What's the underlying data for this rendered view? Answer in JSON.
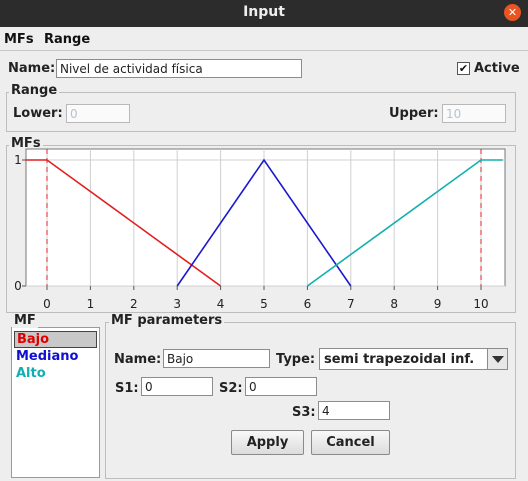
{
  "window": {
    "title": "Input",
    "close_glyph": "✕"
  },
  "menu": [
    "MFs",
    "Range"
  ],
  "name": {
    "label": "Name:",
    "value": "Nivel de actividad física"
  },
  "active": {
    "label": "Active",
    "checked": true,
    "check_glyph": "✔"
  },
  "range": {
    "title": "Range",
    "lower_label": "Lower:",
    "lower_value": "0",
    "upper_label": "Upper:",
    "upper_value": "10"
  },
  "mfs_title": "MFs",
  "chart_data": {
    "type": "line",
    "xlim": [
      0,
      10
    ],
    "ylim": [
      0,
      1
    ],
    "x_ticks": [
      "0",
      "1",
      "2",
      "3",
      "4",
      "5",
      "6",
      "7",
      "8",
      "9",
      "10"
    ],
    "y_ticks": [
      "0",
      "1"
    ],
    "grid": true,
    "series": [
      {
        "name": "Bajo",
        "color": "#e02020",
        "points": [
          [
            -0.5,
            1
          ],
          [
            0,
            1
          ],
          [
            4,
            0
          ]
        ]
      },
      {
        "name": "Mediano",
        "color": "#1a1acc",
        "points": [
          [
            3,
            0
          ],
          [
            5,
            1
          ],
          [
            7,
            0
          ]
        ]
      },
      {
        "name": "Alto",
        "color": "#10b0b0",
        "points": [
          [
            6,
            0
          ],
          [
            10,
            1
          ],
          [
            10.5,
            1
          ]
        ]
      }
    ],
    "range_markers": [
      0,
      10
    ],
    "range_marker_color": "#e02020"
  },
  "mf_panel": {
    "title": "MF",
    "items": [
      {
        "label": "Bajo",
        "color": "#e00000",
        "selected": true
      },
      {
        "label": "Mediano",
        "color": "#1010d0",
        "selected": false
      },
      {
        "label": "Alto",
        "color": "#10b0b0",
        "selected": false
      }
    ]
  },
  "mf_params": {
    "title": "MF parameters",
    "name_label": "Name:",
    "name_value": "Bajo",
    "type_label": "Type:",
    "type_value": "semi trapezoidal inf.",
    "s1_label": "S1:",
    "s1_value": "0",
    "s2_label": "S2:",
    "s2_value": "0",
    "s3_label": "S3:",
    "s3_value": "4",
    "apply_label": "Apply",
    "cancel_label": "Cancel"
  }
}
